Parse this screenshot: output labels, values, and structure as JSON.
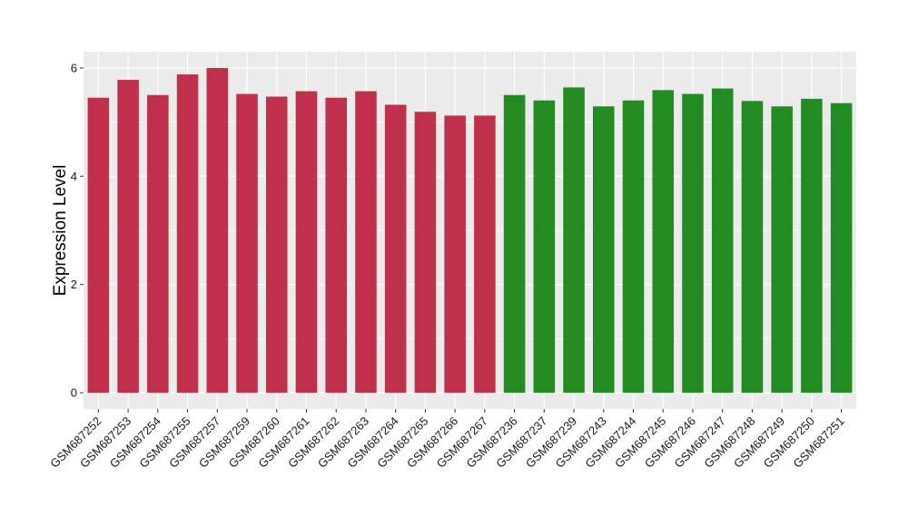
{
  "chart_data": {
    "type": "bar",
    "ylabel": "Expression Level",
    "xlabel": "",
    "ylim": [
      -0.3,
      6.3
    ],
    "yticks": [
      0,
      2,
      4,
      6
    ],
    "ytick_labels": [
      "0",
      "2",
      "4",
      "6"
    ],
    "grid": true,
    "legend": "none",
    "categories": [
      "GSM687252",
      "GSM687253",
      "GSM687254",
      "GSM687255",
      "GSM687257",
      "GSM687259",
      "GSM687260",
      "GSM687261",
      "GSM687262",
      "GSM687263",
      "GSM687264",
      "GSM687265",
      "GSM687266",
      "GSM687267",
      "GSM687236",
      "GSM687237",
      "GSM687239",
      "GSM687243",
      "GSM687244",
      "GSM687245",
      "GSM687246",
      "GSM687247",
      "GSM687248",
      "GSM687249",
      "GSM687250",
      "GSM687251"
    ],
    "values": [
      5.45,
      5.78,
      5.5,
      5.88,
      6.0,
      5.52,
      5.47,
      5.57,
      5.45,
      5.57,
      5.32,
      5.19,
      5.12,
      5.12,
      5.5,
      5.4,
      5.64,
      5.29,
      5.4,
      5.59,
      5.52,
      5.62,
      5.39,
      5.29,
      5.43,
      5.35
    ],
    "groups": [
      0,
      0,
      0,
      0,
      0,
      0,
      0,
      0,
      0,
      0,
      0,
      0,
      0,
      0,
      1,
      1,
      1,
      1,
      1,
      1,
      1,
      1,
      1,
      1,
      1,
      1
    ],
    "group_colors": [
      "#c0304a",
      "#228b22"
    ],
    "panel_color": "#ebebeb",
    "grid_color": "#ffffff"
  }
}
